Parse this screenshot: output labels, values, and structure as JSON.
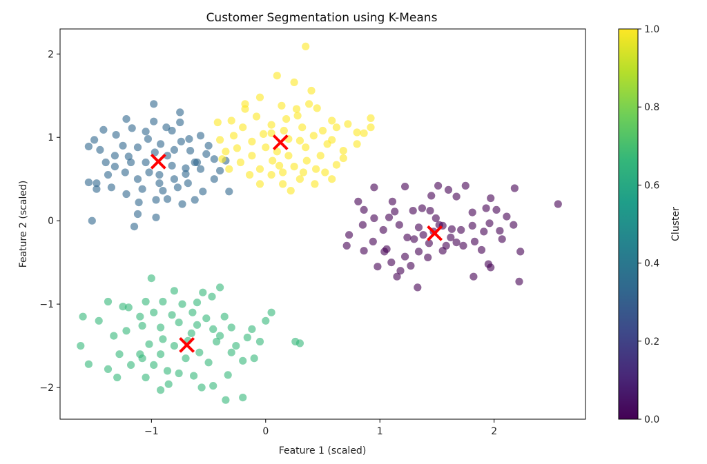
{
  "chart_data": {
    "type": "scatter",
    "title": "Customer Segmentation using K-Means",
    "xlabel": "Feature 1 (scaled)",
    "ylabel": "Feature 2 (scaled)",
    "xlim": [
      -1.8,
      2.8
    ],
    "ylim": [
      -2.38,
      2.3
    ],
    "xticks": [
      -1,
      0,
      1,
      2
    ],
    "yticks": [
      -2,
      -1,
      0,
      1,
      2
    ],
    "xtick_labels": [
      "−1",
      "0",
      "1",
      "2"
    ],
    "ytick_labels": [
      "−2",
      "−1",
      "0",
      "1",
      "2"
    ],
    "grid": false,
    "marker_alpha": 0.6,
    "colormap": {
      "name": "viridis",
      "label": "Cluster",
      "range": [
        0.0,
        1.0
      ],
      "ticks": [
        0.0,
        0.2,
        0.4,
        0.6,
        0.8,
        1.0
      ],
      "tick_labels": [
        "0.0",
        "0.2",
        "0.4",
        "0.6",
        "0.8",
        "1.0"
      ],
      "stops": [
        "#440154",
        "#482878",
        "#3e4989",
        "#31688e",
        "#26828e",
        "#1f9e89",
        "#35b779",
        "#6ece58",
        "#b5de2b",
        "#fde725"
      ]
    },
    "series": [
      {
        "cluster_value": 0.0,
        "color": "#440154",
        "points": [
          [
            0.95,
            0.4
          ],
          [
            1.22,
            0.41
          ],
          [
            1.11,
            0.23
          ],
          [
            0.81,
            0.23
          ],
          [
            0.86,
            0.13
          ],
          [
            1.29,
            0.12
          ],
          [
            1.08,
            0.04
          ],
          [
            1.45,
            0.3
          ],
          [
            1.51,
            0.42
          ],
          [
            1.6,
            0.37
          ],
          [
            1.75,
            0.42
          ],
          [
            1.97,
            0.27
          ],
          [
            2.18,
            0.39
          ],
          [
            2.56,
            0.2
          ],
          [
            1.67,
            0.29
          ],
          [
            1.81,
            0.1
          ],
          [
            1.93,
            0.15
          ],
          [
            2.02,
            0.13
          ],
          [
            2.11,
            0.05
          ],
          [
            2.17,
            -0.05
          ],
          [
            2.05,
            -0.12
          ],
          [
            1.91,
            -0.13
          ],
          [
            1.83,
            -0.25
          ],
          [
            1.73,
            -0.3
          ],
          [
            1.62,
            -0.2
          ],
          [
            1.55,
            -0.36
          ],
          [
            1.42,
            -0.44
          ],
          [
            1.34,
            -0.37
          ],
          [
            1.27,
            -0.54
          ],
          [
            1.33,
            -0.8
          ],
          [
            1.18,
            -0.6
          ],
          [
            1.1,
            -0.5
          ],
          [
            1.04,
            -0.37
          ],
          [
            0.98,
            -0.55
          ],
          [
            0.94,
            -0.25
          ],
          [
            0.86,
            -0.36
          ],
          [
            0.71,
            -0.3
          ],
          [
            0.73,
            -0.17
          ],
          [
            0.85,
            -0.05
          ],
          [
            0.95,
            0.03
          ],
          [
            1.03,
            -0.11
          ],
          [
            1.17,
            -0.05
          ],
          [
            1.24,
            -0.2
          ],
          [
            1.34,
            -0.08
          ],
          [
            1.44,
            0.12
          ],
          [
            1.52,
            -0.05
          ],
          [
            1.63,
            -0.1
          ],
          [
            1.71,
            -0.11
          ],
          [
            1.81,
            -0.06
          ],
          [
            1.89,
            -0.35
          ],
          [
            1.95,
            -0.52
          ],
          [
            2.07,
            -0.22
          ],
          [
            2.23,
            -0.37
          ],
          [
            2.22,
            -0.73
          ],
          [
            1.97,
            -0.56
          ],
          [
            1.82,
            -0.67
          ],
          [
            1.67,
            -0.26
          ],
          [
            1.43,
            -0.27
          ],
          [
            1.3,
            -0.22
          ],
          [
            1.22,
            -0.43
          ],
          [
            1.15,
            -0.67
          ],
          [
            1.06,
            -0.34
          ],
          [
            1.49,
            0.03
          ],
          [
            1.58,
            -0.3
          ],
          [
            1.37,
            0.15
          ],
          [
            1.13,
            0.11
          ],
          [
            1.47,
            -0.13
          ],
          [
            1.55,
            -0.06
          ],
          [
            1.38,
            -0.17
          ],
          [
            1.96,
            -0.03
          ]
        ]
      },
      {
        "cluster_value": 0.33,
        "color": "#31688e",
        "points": [
          [
            -0.98,
            1.4
          ],
          [
            -0.75,
            1.3
          ],
          [
            -0.75,
            1.18
          ],
          [
            -0.82,
            1.08
          ],
          [
            -0.98,
            1.19
          ],
          [
            -1.05,
            1.07
          ],
          [
            -1.22,
            1.22
          ],
          [
            -1.17,
            1.11
          ],
          [
            -1.31,
            1.03
          ],
          [
            -1.42,
            1.09
          ],
          [
            -1.5,
            0.97
          ],
          [
            -1.55,
            0.89
          ],
          [
            -1.45,
            0.85
          ],
          [
            -1.32,
            0.78
          ],
          [
            -1.2,
            0.77
          ],
          [
            -1.12,
            0.88
          ],
          [
            -0.92,
            0.92
          ],
          [
            -0.8,
            0.85
          ],
          [
            -0.66,
            0.84
          ],
          [
            -0.57,
            1.02
          ],
          [
            -0.5,
            0.9
          ],
          [
            -0.45,
            0.74
          ],
          [
            -0.6,
            0.7
          ],
          [
            -0.7,
            0.63
          ],
          [
            -0.82,
            0.66
          ],
          [
            -0.93,
            0.55
          ],
          [
            -1.02,
            0.58
          ],
          [
            -1.12,
            0.5
          ],
          [
            -1.23,
            0.58
          ],
          [
            -1.38,
            0.55
          ],
          [
            -1.48,
            0.45
          ],
          [
            -1.55,
            0.46
          ],
          [
            -1.48,
            0.38
          ],
          [
            -1.35,
            0.4
          ],
          [
            -1.22,
            0.32
          ],
          [
            -1.11,
            0.22
          ],
          [
            -0.96,
            0.25
          ],
          [
            -0.9,
            0.36
          ],
          [
            -0.77,
            0.4
          ],
          [
            -0.68,
            0.45
          ],
          [
            -0.55,
            0.35
          ],
          [
            -0.45,
            0.5
          ],
          [
            -0.4,
            0.6
          ],
          [
            -0.32,
            0.35
          ],
          [
            -0.35,
            0.72
          ],
          [
            -0.62,
            0.25
          ],
          [
            -0.73,
            0.2
          ],
          [
            -0.96,
            0.04
          ],
          [
            -1.12,
            0.08
          ],
          [
            -1.15,
            -0.07
          ],
          [
            -1.52,
            0.0
          ],
          [
            -1.32,
            0.65
          ],
          [
            -1.05,
            0.7
          ],
          [
            -0.86,
            0.78
          ],
          [
            -0.7,
            0.56
          ],
          [
            -1.18,
            0.7
          ],
          [
            -0.93,
            0.45
          ],
          [
            -0.8,
            0.5
          ],
          [
            -0.57,
            0.62
          ],
          [
            -1.03,
            0.98
          ],
          [
            -0.87,
            1.12
          ],
          [
            -1.25,
            0.9
          ],
          [
            -0.67,
            0.98
          ],
          [
            -0.52,
            0.8
          ],
          [
            -1.08,
            0.38
          ],
          [
            -0.86,
            0.26
          ],
          [
            -1.4,
            0.7
          ],
          [
            -0.97,
            0.82
          ],
          [
            -0.62,
            0.7
          ],
          [
            -0.74,
            0.95
          ]
        ]
      },
      {
        "cluster_value": 0.66,
        "color": "#35b779",
        "points": [
          [
            -1.0,
            -0.69
          ],
          [
            -0.8,
            -0.84
          ],
          [
            -0.55,
            -0.86
          ],
          [
            -0.4,
            -0.8
          ],
          [
            -0.47,
            -0.91
          ],
          [
            -0.6,
            -0.98
          ],
          [
            -0.73,
            -1.0
          ],
          [
            -0.9,
            -0.97
          ],
          [
            -1.05,
            -0.97
          ],
          [
            -1.2,
            -1.04
          ],
          [
            -1.38,
            -0.97
          ],
          [
            -1.25,
            -1.03
          ],
          [
            -1.1,
            -1.15
          ],
          [
            -0.98,
            -1.1
          ],
          [
            -0.82,
            -1.13
          ],
          [
            -0.64,
            -1.1
          ],
          [
            -0.52,
            -1.17
          ],
          [
            -0.36,
            -1.15
          ],
          [
            -0.3,
            -1.28
          ],
          [
            -0.46,
            -1.3
          ],
          [
            -0.6,
            -1.25
          ],
          [
            -0.76,
            -1.22
          ],
          [
            -0.92,
            -1.28
          ],
          [
            -1.08,
            -1.26
          ],
          [
            -1.22,
            -1.32
          ],
          [
            -1.33,
            -1.38
          ],
          [
            -1.46,
            -1.2
          ],
          [
            -1.6,
            -1.15
          ],
          [
            -1.62,
            -1.5
          ],
          [
            -1.55,
            -1.72
          ],
          [
            -1.38,
            -1.78
          ],
          [
            -1.28,
            -1.6
          ],
          [
            -1.18,
            -1.73
          ],
          [
            -1.08,
            -1.65
          ],
          [
            -0.98,
            -1.73
          ],
          [
            -0.86,
            -1.8
          ],
          [
            -0.76,
            -1.83
          ],
          [
            -0.63,
            -1.86
          ],
          [
            -0.56,
            -2.0
          ],
          [
            -0.46,
            -1.98
          ],
          [
            -0.35,
            -2.15
          ],
          [
            -0.2,
            -2.12
          ],
          [
            -0.33,
            -1.85
          ],
          [
            -0.2,
            -1.68
          ],
          [
            -0.1,
            -1.65
          ],
          [
            -0.05,
            -1.45
          ],
          [
            0.0,
            -1.2
          ],
          [
            0.05,
            -1.1
          ],
          [
            0.26,
            -1.45
          ],
          [
            0.3,
            -1.47
          ],
          [
            -0.16,
            -1.4
          ],
          [
            -0.26,
            -1.5
          ],
          [
            -0.43,
            -1.45
          ],
          [
            -0.58,
            -1.58
          ],
          [
            -0.68,
            -1.44
          ],
          [
            -0.8,
            -1.5
          ],
          [
            -0.9,
            -1.42
          ],
          [
            -1.02,
            -1.48
          ],
          [
            -1.1,
            -1.6
          ],
          [
            -0.92,
            -1.6
          ],
          [
            -0.7,
            -1.65
          ],
          [
            -0.5,
            -1.7
          ],
          [
            -0.3,
            -1.58
          ],
          [
            -0.12,
            -1.3
          ],
          [
            -0.85,
            -1.96
          ],
          [
            -0.92,
            -2.03
          ],
          [
            -1.05,
            -1.88
          ],
          [
            -1.3,
            -1.88
          ],
          [
            -0.65,
            -1.35
          ],
          [
            -0.4,
            -1.38
          ]
        ]
      },
      {
        "cluster_value": 1.0,
        "color": "#fde725",
        "points": [
          [
            0.35,
            2.09
          ],
          [
            0.1,
            1.74
          ],
          [
            0.25,
            1.66
          ],
          [
            0.4,
            1.56
          ],
          [
            -0.05,
            1.48
          ],
          [
            -0.18,
            1.4
          ],
          [
            0.14,
            1.38
          ],
          [
            0.27,
            1.34
          ],
          [
            0.45,
            1.35
          ],
          [
            0.58,
            1.2
          ],
          [
            0.5,
            1.08
          ],
          [
            0.32,
            1.12
          ],
          [
            0.18,
            1.22
          ],
          [
            0.05,
            1.15
          ],
          [
            -0.08,
            1.25
          ],
          [
            -0.2,
            1.12
          ],
          [
            -0.3,
            1.2
          ],
          [
            -0.42,
            1.18
          ],
          [
            -0.4,
            0.97
          ],
          [
            -0.35,
            0.83
          ],
          [
            -0.25,
            0.87
          ],
          [
            -0.12,
            0.95
          ],
          [
            0.0,
            0.88
          ],
          [
            0.1,
            0.83
          ],
          [
            0.2,
            0.98
          ],
          [
            0.35,
            0.88
          ],
          [
            0.48,
            0.78
          ],
          [
            0.58,
            0.97
          ],
          [
            0.68,
            0.84
          ],
          [
            0.72,
            1.16
          ],
          [
            0.8,
            1.06
          ],
          [
            0.86,
            1.05
          ],
          [
            0.92,
            1.23
          ],
          [
            0.92,
            1.12
          ],
          [
            0.68,
            0.75
          ],
          [
            0.62,
            0.67
          ],
          [
            0.58,
            0.5
          ],
          [
            0.44,
            0.62
          ],
          [
            0.43,
            0.44
          ],
          [
            0.3,
            0.5
          ],
          [
            0.22,
            0.36
          ],
          [
            0.15,
            0.44
          ],
          [
            0.05,
            0.55
          ],
          [
            -0.05,
            0.62
          ],
          [
            -0.14,
            0.55
          ],
          [
            -0.22,
            0.7
          ],
          [
            -0.32,
            0.62
          ],
          [
            -0.05,
            0.44
          ],
          [
            0.15,
            0.58
          ],
          [
            0.25,
            0.65
          ],
          [
            0.36,
            0.72
          ],
          [
            0.06,
            0.72
          ],
          [
            -0.12,
            0.78
          ],
          [
            -0.28,
            1.02
          ],
          [
            0.42,
            1.02
          ],
          [
            0.28,
            1.26
          ],
          [
            0.05,
            1.05
          ],
          [
            0.54,
            0.92
          ],
          [
            0.2,
            0.78
          ],
          [
            0.33,
            0.58
          ],
          [
            -0.18,
            1.34
          ],
          [
            0.38,
            1.4
          ],
          [
            -0.02,
            1.04
          ],
          [
            0.12,
            0.66
          ],
          [
            0.52,
            0.58
          ],
          [
            0.62,
            1.12
          ],
          [
            0.3,
            0.96
          ],
          [
            -0.38,
            0.74
          ],
          [
            0.8,
            0.92
          ],
          [
            0.16,
            1.08
          ]
        ]
      }
    ],
    "centroids": [
      {
        "x": 1.48,
        "y": -0.15,
        "marker": "x",
        "color": "#ff0000"
      },
      {
        "x": -0.94,
        "y": 0.71,
        "marker": "x",
        "color": "#ff0000"
      },
      {
        "x": -0.69,
        "y": -1.49,
        "marker": "x",
        "color": "#ff0000"
      },
      {
        "x": 0.13,
        "y": 0.94,
        "marker": "x",
        "color": "#ff0000"
      }
    ]
  }
}
